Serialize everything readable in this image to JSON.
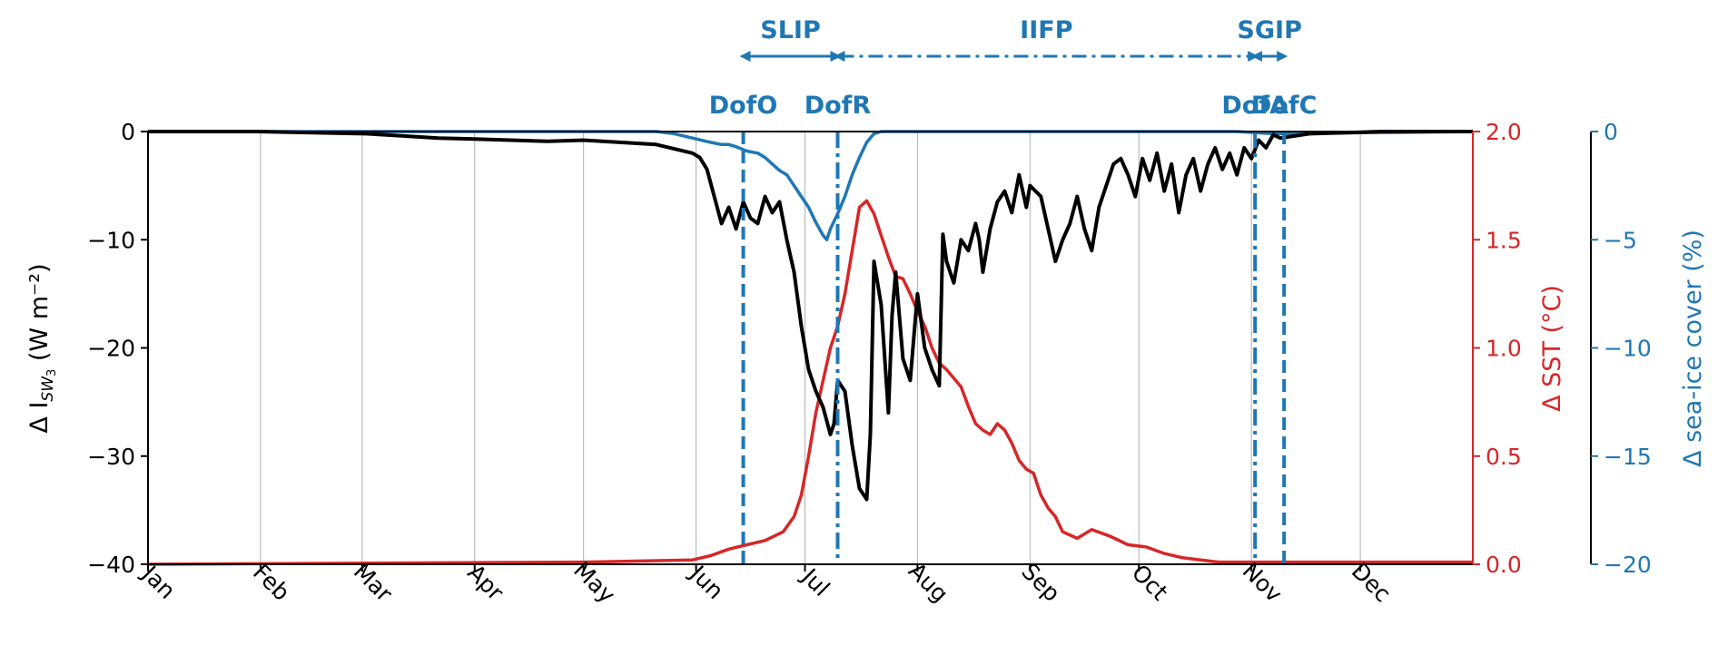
{
  "chart_data": {
    "type": "line",
    "xlim": [
      0,
      365
    ],
    "months": {
      "labels": [
        "Jan",
        "Feb",
        "Mar",
        "Apr",
        "May",
        "Jun",
        "Jul",
        "Aug",
        "Sep",
        "Oct",
        "Nov",
        "Dec"
      ],
      "days": [
        0,
        31,
        59,
        90,
        120,
        151,
        181,
        212,
        243,
        273,
        304,
        334
      ]
    },
    "axes": {
      "left": {
        "label": "Δ I",
        "label_sub": "SW",
        "label_sub2": "3",
        "label_unit": "(W m⁻²)",
        "ylim": [
          -40,
          0
        ],
        "ticks": [
          0,
          -10,
          -20,
          -30,
          -40
        ],
        "tick_labels": [
          "0",
          "−10",
          "−20",
          "−30",
          "−40"
        ],
        "color": "#000000"
      },
      "right1": {
        "label": "Δ SST (°C)",
        "ylim": [
          0,
          2
        ],
        "ticks": [
          2.0,
          1.5,
          1.0,
          0.5,
          0.0
        ],
        "tick_labels": [
          "2.0",
          "1.5",
          "1.0",
          "0.5",
          "0.0"
        ],
        "color": "#d62728"
      },
      "right2": {
        "label": "Δ sea-ice cover (%)",
        "ylim": [
          -20,
          0
        ],
        "ticks": [
          0,
          -5,
          -10,
          -15,
          -20
        ],
        "tick_labels": [
          "0",
          "−5",
          "−10",
          "−15",
          "−20"
        ],
        "color": "#1f77b4"
      }
    },
    "grid": {
      "x": true,
      "y": false
    },
    "series": [
      {
        "axis": "left",
        "color": "#000000",
        "x": [
          0,
          30,
          60,
          70,
          80,
          90,
          100,
          110,
          120,
          130,
          140,
          145,
          150,
          152,
          154,
          156,
          158,
          160,
          162,
          164,
          166,
          168,
          170,
          172,
          174,
          176,
          178,
          180,
          182,
          184,
          186,
          188,
          189,
          190,
          192,
          194,
          196,
          198,
          199,
          200,
          202,
          204,
          205,
          206,
          208,
          210,
          212,
          214,
          216,
          218,
          219,
          220,
          222,
          224,
          226,
          228,
          229,
          230,
          232,
          234,
          236,
          238,
          240,
          242,
          243,
          246,
          248,
          250,
          252,
          254,
          256,
          258,
          260,
          262,
          264,
          266,
          268,
          270,
          272,
          274,
          276,
          278,
          280,
          282,
          284,
          286,
          288,
          290,
          292,
          294,
          296,
          298,
          300,
          302,
          304,
          306,
          308,
          310,
          312,
          320,
          330,
          340,
          350,
          365
        ],
        "y": [
          0,
          0,
          -0.2,
          -0.4,
          -0.6,
          -0.7,
          -0.8,
          -0.9,
          -0.8,
          -1.0,
          -1.2,
          -1.6,
          -2.0,
          -2.4,
          -3.5,
          -6.0,
          -8.5,
          -7.0,
          -9.0,
          -6.5,
          -8.0,
          -8.5,
          -6.0,
          -7.5,
          -6.5,
          -10.0,
          -13.0,
          -18.0,
          -22.0,
          -24.0,
          -25.5,
          -28.0,
          -27.0,
          -23.0,
          -24.0,
          -29.0,
          -33.0,
          -34.0,
          -28.0,
          -12.0,
          -16.0,
          -26.0,
          -17.0,
          -13.0,
          -21.0,
          -23.0,
          -15.0,
          -20.0,
          -22.0,
          -23.5,
          -9.5,
          -12.0,
          -14.0,
          -10.0,
          -11.0,
          -8.5,
          -10.0,
          -13.0,
          -9.0,
          -6.5,
          -5.5,
          -7.5,
          -4.0,
          -7.0,
          -5.0,
          -6.0,
          -9.0,
          -12.0,
          -10.0,
          -8.5,
          -6.0,
          -9.0,
          -11.0,
          -7.0,
          -5.0,
          -3.0,
          -2.5,
          -4.0,
          -6.0,
          -2.5,
          -4.5,
          -2.0,
          -5.5,
          -3.0,
          -7.5,
          -4.0,
          -2.5,
          -5.5,
          -3.0,
          -1.5,
          -3.5,
          -2.0,
          -4.0,
          -1.5,
          -2.5,
          -0.8,
          -1.5,
          -0.3,
          -0.6,
          -0.2,
          -0.1,
          0,
          0,
          0
        ]
      },
      {
        "axis": "right1",
        "color": "#d62728",
        "x": [
          0,
          120,
          150,
          155,
          160,
          165,
          170,
          175,
          178,
          180,
          182,
          184,
          186,
          188,
          189,
          190,
          192,
          194,
          196,
          198,
          200,
          202,
          204,
          206,
          208,
          210,
          212,
          214,
          216,
          218,
          220,
          222,
          224,
          226,
          228,
          230,
          232,
          234,
          236,
          238,
          240,
          242,
          244,
          246,
          248,
          250,
          252,
          256,
          260,
          265,
          270,
          275,
          280,
          285,
          290,
          295,
          300,
          310,
          330,
          365
        ],
        "y": [
          0,
          0.01,
          0.02,
          0.04,
          0.07,
          0.09,
          0.11,
          0.15,
          0.22,
          0.32,
          0.5,
          0.7,
          0.85,
          1.0,
          1.05,
          1.1,
          1.25,
          1.45,
          1.65,
          1.68,
          1.62,
          1.52,
          1.42,
          1.33,
          1.32,
          1.25,
          1.17,
          1.1,
          1.0,
          0.93,
          0.9,
          0.86,
          0.82,
          0.73,
          0.65,
          0.62,
          0.6,
          0.65,
          0.62,
          0.56,
          0.48,
          0.44,
          0.42,
          0.32,
          0.26,
          0.22,
          0.15,
          0.12,
          0.16,
          0.13,
          0.09,
          0.08,
          0.05,
          0.03,
          0.02,
          0.01,
          0.01,
          0.01,
          0.01,
          0.01
        ]
      },
      {
        "axis": "right2",
        "color": "#1f77b4",
        "x": [
          0,
          140,
          145,
          150,
          155,
          158,
          160,
          162,
          165,
          168,
          170,
          172,
          174,
          176,
          178,
          180,
          182,
          184,
          186,
          187,
          188,
          190,
          192,
          194,
          196,
          198,
          200,
          202,
          240,
          300,
          310,
          365
        ],
        "y": [
          0,
          0,
          -0.1,
          -0.3,
          -0.5,
          -0.6,
          -0.6,
          -0.7,
          -0.9,
          -1.0,
          -1.2,
          -1.5,
          -1.8,
          -2.0,
          -2.5,
          -3.0,
          -3.5,
          -4.2,
          -4.8,
          -5.0,
          -4.5,
          -3.8,
          -3.0,
          -2.0,
          -1.2,
          -0.5,
          -0.1,
          0,
          0,
          0,
          -0.1,
          0
        ]
      }
    ],
    "events": [
      {
        "label": "DofO",
        "day": 164,
        "style": "dashed"
      },
      {
        "label": "DofR",
        "day": 190,
        "style": "dashdot"
      },
      {
        "label": "DofA",
        "day": 305,
        "style": "dashdot"
      },
      {
        "label": "DofC",
        "day": 313,
        "style": "dashed"
      }
    ],
    "periods": [
      {
        "label": "SLIP",
        "from": 164,
        "to": 190,
        "style": "solid"
      },
      {
        "label": "IIFP",
        "from": 190,
        "to": 305,
        "style": "dashdot"
      },
      {
        "label": "SGIP",
        "from": 305,
        "to": 313,
        "style": "solid"
      }
    ]
  },
  "colors": {
    "sst": "#d62728",
    "ice": "#1f77b4",
    "flux": "#000000",
    "grid": "#b0b0b0"
  }
}
